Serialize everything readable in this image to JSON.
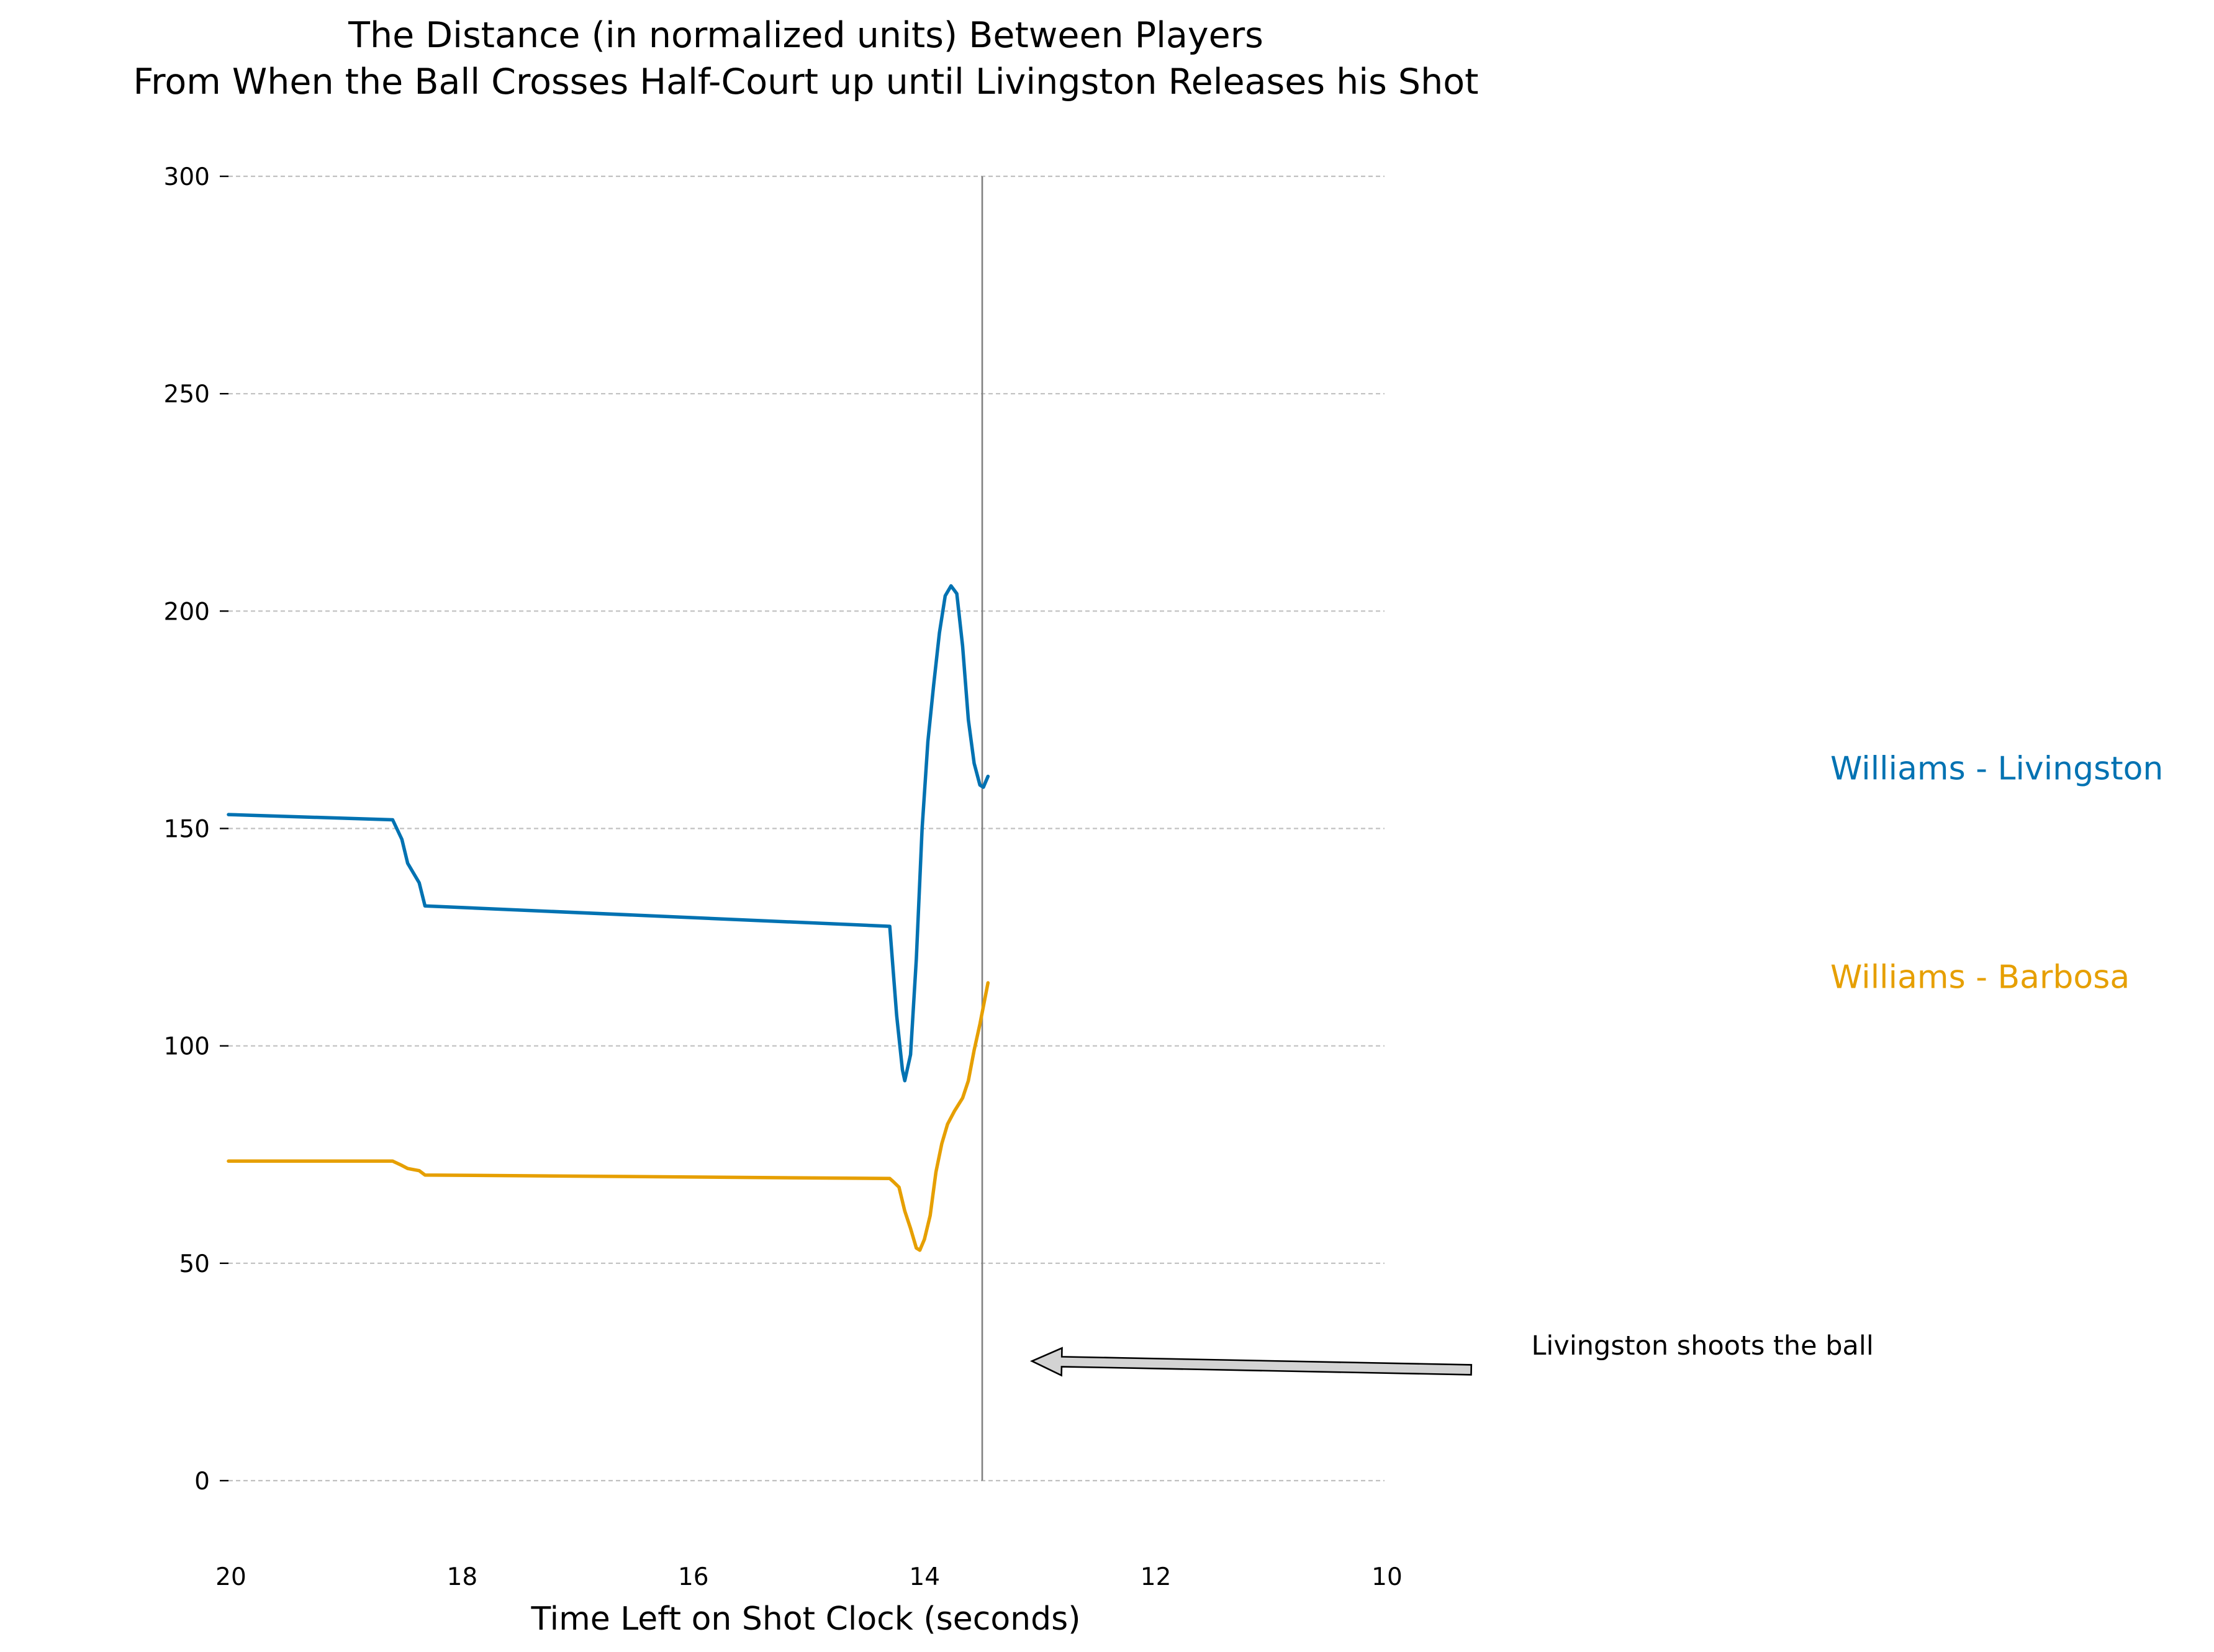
{
  "chart_data": {
    "type": "line",
    "title_lines": [
      "The Distance (in normalized units) Between Players",
      "From When the Ball Crosses Half-Court up until Livingston Releases his Shot"
    ],
    "xlabel": "Time Left on Shot Clock (seconds)",
    "ylabel": "",
    "xlim": [
      20,
      10
    ],
    "ylim": [
      -10,
      300
    ],
    "x_reversed": true,
    "xticks": [
      20,
      18,
      16,
      14,
      12,
      10
    ],
    "yticks": [
      0,
      50,
      100,
      150,
      200,
      250,
      300
    ],
    "xtick_labels": [
      "20",
      "18",
      "16",
      "14",
      "12",
      "10"
    ],
    "ytick_labels": [
      "0",
      "50",
      "100",
      "150",
      "200",
      "250",
      "300"
    ],
    "grid": "y-dashed",
    "legend": "direct labels at right",
    "series": [
      {
        "name": "Williams - Livingston",
        "color": "#0072b2",
        "points": [
          [
            20.0,
            153.2
          ],
          [
            18.58,
            152.0
          ],
          [
            18.5,
            147.5
          ],
          [
            18.45,
            142.0
          ],
          [
            18.35,
            137.5
          ],
          [
            18.3,
            132.2
          ],
          [
            14.28,
            127.5
          ],
          [
            14.22,
            107.0
          ],
          [
            14.17,
            94.5
          ],
          [
            14.15,
            92.0
          ],
          [
            14.1,
            98.0
          ],
          [
            14.05,
            120.0
          ],
          [
            14.0,
            150.0
          ],
          [
            13.95,
            170.0
          ],
          [
            13.9,
            183.0
          ],
          [
            13.85,
            195.0
          ],
          [
            13.8,
            203.5
          ],
          [
            13.75,
            205.8
          ],
          [
            13.7,
            204.0
          ],
          [
            13.65,
            192.0
          ],
          [
            13.6,
            175.0
          ],
          [
            13.55,
            165.0
          ],
          [
            13.5,
            160.0
          ],
          [
            13.47,
            159.5
          ],
          [
            13.43,
            162.0
          ]
        ],
        "label": "Williams - Livingston",
        "label_y": 164
      },
      {
        "name": "Williams - Barbosa",
        "color": "#e69f00",
        "points": [
          [
            20.0,
            73.5
          ],
          [
            18.58,
            73.5
          ],
          [
            18.5,
            72.5
          ],
          [
            18.45,
            71.8
          ],
          [
            18.35,
            71.3
          ],
          [
            18.3,
            70.3
          ],
          [
            14.28,
            69.5
          ],
          [
            14.25,
            68.8
          ],
          [
            14.2,
            67.5
          ],
          [
            14.15,
            62.0
          ],
          [
            14.1,
            58.0
          ],
          [
            14.05,
            53.5
          ],
          [
            14.02,
            53.0
          ],
          [
            13.98,
            55.5
          ],
          [
            13.93,
            61.0
          ],
          [
            13.88,
            71.0
          ],
          [
            13.83,
            77.5
          ],
          [
            13.78,
            82.0
          ],
          [
            13.72,
            85.0
          ],
          [
            13.65,
            88.0
          ],
          [
            13.6,
            92.0
          ],
          [
            13.55,
            99.0
          ],
          [
            13.5,
            105.0
          ],
          [
            13.43,
            114.5
          ]
        ],
        "label": "Williams - Barbosa",
        "label_y": 116
      }
    ],
    "vline": {
      "x": 13.48,
      "color": "#808080"
    },
    "annotation": {
      "text": "Livingston shoots the ball",
      "text_x": 8.73,
      "text_y": 29,
      "arrow_from": [
        9.25,
        25.5
      ],
      "arrow_to": [
        13.05,
        27.5
      ],
      "arrow_fill": "#d3d3d3",
      "arrow_edge": "#000000"
    }
  }
}
